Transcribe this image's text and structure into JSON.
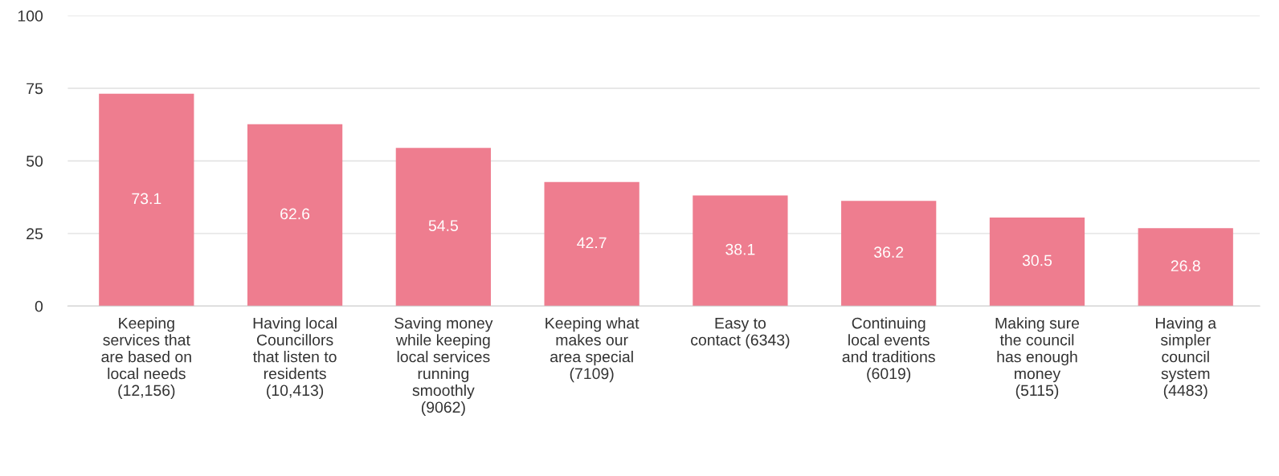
{
  "chart_data": {
    "type": "bar",
    "categories": [
      "Keeping\nservices that\nare based on\nlocal needs\n(12,156)",
      "Having local\nCouncillors\nthat listen to\nresidents\n(10,413)",
      "Saving money\nwhile keeping\nlocal services\nrunning\nsmoothly\n(9062)",
      "Keeping what\nmakes our\narea special\n(7109)",
      "Easy to\ncontact (6343)",
      "Continuing\nlocal events\nand traditions\n(6019)",
      "Making sure\nthe council\nhas enough\nmoney\n(5115)",
      "Having a\nsimpler\ncouncil\nsystem\n(4483)"
    ],
    "values": [
      73.1,
      62.6,
      54.5,
      42.7,
      38.1,
      36.2,
      30.5,
      26.8
    ],
    "color": "#ee7d8f",
    "ylim": [
      0,
      100
    ],
    "yticks": [
      0,
      25,
      50,
      75,
      100
    ],
    "grid": "y",
    "data_labels": true
  }
}
